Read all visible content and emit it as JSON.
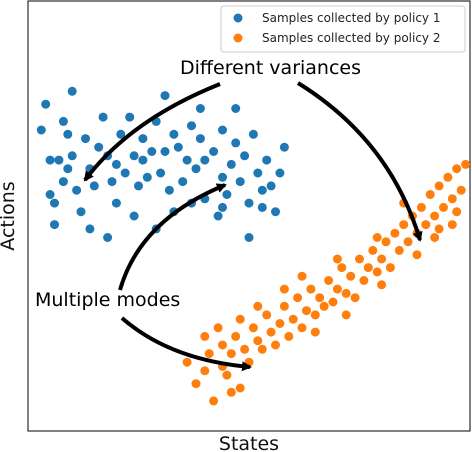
{
  "chart_data": {
    "type": "scatter",
    "xlabel": "States",
    "ylabel": "Actions",
    "xlim": [
      0,
      1
    ],
    "ylim": [
      0,
      1
    ],
    "grid": false,
    "legend_placement": "top-right",
    "series": [
      {
        "name": "Samples collected by policy 1",
        "color": "#1f77b4",
        "points": [
          [
            0.03,
            0.7
          ],
          [
            0.04,
            0.76
          ],
          [
            0.05,
            0.63
          ],
          [
            0.05,
            0.55
          ],
          [
            0.06,
            0.48
          ],
          [
            0.07,
            0.63
          ],
          [
            0.08,
            0.72
          ],
          [
            0.09,
            0.69
          ],
          [
            0.09,
            0.61
          ],
          [
            0.1,
            0.79
          ],
          [
            0.1,
            0.64
          ],
          [
            0.11,
            0.56
          ],
          [
            0.12,
            0.51
          ],
          [
            0.13,
            0.68
          ],
          [
            0.14,
            0.61
          ],
          [
            0.15,
            0.57
          ],
          [
            0.16,
            0.66
          ],
          [
            0.17,
            0.73
          ],
          [
            0.18,
            0.64
          ],
          [
            0.18,
            0.45
          ],
          [
            0.19,
            0.58
          ],
          [
            0.2,
            0.62
          ],
          [
            0.21,
            0.69
          ],
          [
            0.22,
            0.6
          ],
          [
            0.23,
            0.73
          ],
          [
            0.24,
            0.5
          ],
          [
            0.24,
            0.64
          ],
          [
            0.25,
            0.57
          ],
          [
            0.26,
            0.68
          ],
          [
            0.27,
            0.59
          ],
          [
            0.28,
            0.65
          ],
          [
            0.29,
            0.47
          ],
          [
            0.29,
            0.72
          ],
          [
            0.3,
            0.6
          ],
          [
            0.31,
            0.78
          ],
          [
            0.31,
            0.65
          ],
          [
            0.32,
            0.56
          ],
          [
            0.33,
            0.69
          ],
          [
            0.34,
            0.66
          ],
          [
            0.35,
            0.58
          ],
          [
            0.36,
            0.63
          ],
          [
            0.37,
            0.53
          ],
          [
            0.37,
            0.71
          ],
          [
            0.38,
            0.61
          ],
          [
            0.39,
            0.68
          ],
          [
            0.4,
            0.54
          ],
          [
            0.4,
            0.63
          ],
          [
            0.42,
            0.65
          ],
          [
            0.43,
            0.5
          ],
          [
            0.44,
            0.59
          ],
          [
            0.44,
            0.7
          ],
          [
            0.45,
            0.55
          ],
          [
            0.46,
            0.62
          ],
          [
            0.47,
            0.67
          ],
          [
            0.48,
            0.58
          ],
          [
            0.49,
            0.64
          ],
          [
            0.5,
            0.53
          ],
          [
            0.51,
            0.69
          ],
          [
            0.52,
            0.6
          ],
          [
            0.53,
            0.56
          ],
          [
            0.54,
            0.63
          ],
          [
            0.55,
            0.57
          ],
          [
            0.56,
            0.51
          ],
          [
            0.58,
            0.66
          ],
          [
            0.14,
            0.47
          ],
          [
            0.06,
            0.53
          ],
          [
            0.2,
            0.53
          ],
          [
            0.33,
            0.51
          ],
          [
            0.39,
            0.75
          ],
          [
            0.47,
            0.75
          ],
          [
            0.5,
            0.45
          ],
          [
            0.08,
            0.58
          ],
          [
            0.26,
            0.63
          ],
          [
            0.44,
            0.52
          ],
          [
            0.53,
            0.52
          ],
          [
            0.57,
            0.6
          ]
        ]
      },
      {
        "name": "Samples collected by policy 2",
        "color": "#ff7f0e",
        "points": [
          [
            0.36,
            0.16
          ],
          [
            0.38,
            0.11
          ],
          [
            0.4,
            0.14
          ],
          [
            0.4,
            0.22
          ],
          [
            0.41,
            0.18
          ],
          [
            0.42,
            0.07
          ],
          [
            0.43,
            0.24
          ],
          [
            0.44,
            0.2
          ],
          [
            0.45,
            0.13
          ],
          [
            0.46,
            0.18
          ],
          [
            0.47,
            0.22
          ],
          [
            0.48,
            0.1
          ],
          [
            0.48,
            0.26
          ],
          [
            0.49,
            0.19
          ],
          [
            0.5,
            0.16
          ],
          [
            0.51,
            0.24
          ],
          [
            0.52,
            0.21
          ],
          [
            0.53,
            0.19
          ],
          [
            0.54,
            0.27
          ],
          [
            0.55,
            0.23
          ],
          [
            0.56,
            0.2
          ],
          [
            0.57,
            0.25
          ],
          [
            0.58,
            0.29
          ],
          [
            0.59,
            0.22
          ],
          [
            0.6,
            0.26
          ],
          [
            0.61,
            0.31
          ],
          [
            0.62,
            0.24
          ],
          [
            0.63,
            0.28
          ],
          [
            0.64,
            0.33
          ],
          [
            0.65,
            0.27
          ],
          [
            0.66,
            0.31
          ],
          [
            0.67,
            0.29
          ],
          [
            0.68,
            0.35
          ],
          [
            0.69,
            0.3
          ],
          [
            0.7,
            0.33
          ],
          [
            0.71,
            0.38
          ],
          [
            0.72,
            0.32
          ],
          [
            0.73,
            0.36
          ],
          [
            0.74,
            0.31
          ],
          [
            0.75,
            0.4
          ],
          [
            0.76,
            0.35
          ],
          [
            0.77,
            0.38
          ],
          [
            0.78,
            0.42
          ],
          [
            0.79,
            0.37
          ],
          [
            0.8,
            0.4
          ],
          [
            0.81,
            0.44
          ],
          [
            0.82,
            0.38
          ],
          [
            0.83,
            0.46
          ],
          [
            0.84,
            0.42
          ],
          [
            0.85,
            0.48
          ],
          [
            0.86,
            0.44
          ],
          [
            0.87,
            0.5
          ],
          [
            0.88,
            0.46
          ],
          [
            0.89,
            0.52
          ],
          [
            0.9,
            0.48
          ],
          [
            0.91,
            0.55
          ],
          [
            0.92,
            0.5
          ],
          [
            0.93,
            0.57
          ],
          [
            0.94,
            0.52
          ],
          [
            0.95,
            0.59
          ],
          [
            0.96,
            0.54
          ],
          [
            0.97,
            0.61
          ],
          [
            0.98,
            0.56
          ],
          [
            0.99,
            0.62
          ],
          [
            0.93,
            0.47
          ],
          [
            0.97,
            0.51
          ],
          [
            0.88,
            0.41
          ],
          [
            0.8,
            0.34
          ],
          [
            0.72,
            0.27
          ],
          [
            0.65,
            0.23
          ],
          [
            0.58,
            0.33
          ],
          [
            0.52,
            0.29
          ],
          [
            0.46,
            0.09
          ],
          [
            0.44,
            0.15
          ],
          [
            0.62,
            0.36
          ],
          [
            0.7,
            0.4
          ],
          [
            0.79,
            0.45
          ],
          [
            0.85,
            0.53
          ],
          [
            0.92,
            0.45
          ],
          [
            0.96,
            0.48
          ]
        ]
      }
    ],
    "annotations": [
      {
        "text": "Different variances"
      },
      {
        "text": "Multiple modes"
      }
    ]
  }
}
